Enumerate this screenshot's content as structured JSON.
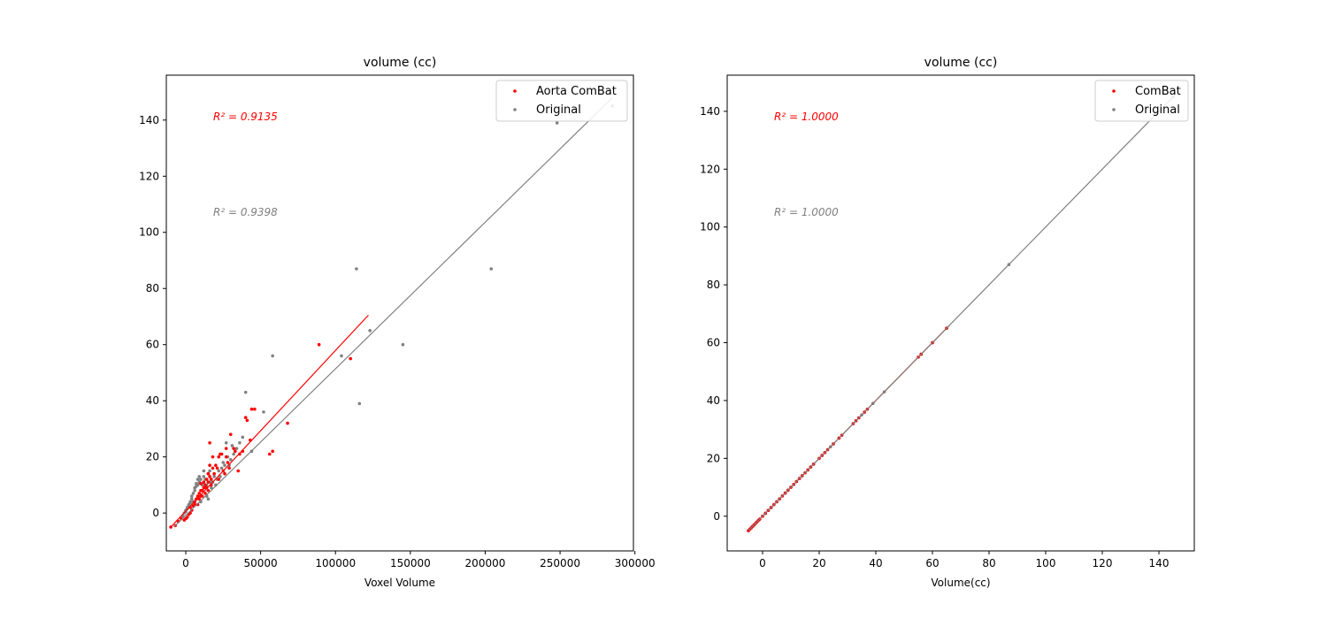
{
  "chart_data": [
    {
      "type": "scatter",
      "title": "volume (cc)",
      "xlabel": "Voxel Volume",
      "ylabel": "",
      "xlim": [
        -13000,
        299000
      ],
      "ylim": [
        -13.5,
        156
      ],
      "xticks": [
        0,
        50000,
        100000,
        150000,
        200000,
        250000,
        300000
      ],
      "yticks": [
        0,
        20,
        40,
        60,
        80,
        100,
        120,
        140
      ],
      "legend_position": "top-right",
      "annotations": [
        {
          "text": "R² = 0.9135",
          "color": "#ff0000"
        },
        {
          "text": "R² = 0.9398",
          "color": "#808080"
        }
      ],
      "series": [
        {
          "name": "Aorta ComBat",
          "color": "#ff0000",
          "points": [
            [
              -10000,
              -5
            ],
            [
              -7000,
              -4.5
            ],
            [
              -5000,
              -3
            ],
            [
              -3000,
              -2
            ],
            [
              -1000,
              -2.5
            ],
            [
              0,
              -2
            ],
            [
              1000,
              -1.5
            ],
            [
              2000,
              -0.5
            ],
            [
              3000,
              0
            ],
            [
              3000,
              2
            ],
            [
              4000,
              1
            ],
            [
              5000,
              2.5
            ],
            [
              6000,
              3
            ],
            [
              6000,
              4
            ],
            [
              7000,
              5
            ],
            [
              8000,
              3
            ],
            [
              8000,
              6
            ],
            [
              9000,
              5
            ],
            [
              9000,
              7
            ],
            [
              10000,
              6
            ],
            [
              10000,
              8
            ],
            [
              10000,
              10.5
            ],
            [
              11000,
              8
            ],
            [
              11000,
              6
            ],
            [
              12000,
              9
            ],
            [
              12000,
              11
            ],
            [
              13000,
              10
            ],
            [
              13000,
              7
            ],
            [
              14000,
              12
            ],
            [
              14000,
              9
            ],
            [
              15000,
              8
            ],
            [
              15000,
              11
            ],
            [
              15000,
              14
            ],
            [
              16000,
              13
            ],
            [
              16000,
              17
            ],
            [
              16000,
              25
            ],
            [
              17000,
              10
            ],
            [
              17000,
              12
            ],
            [
              18000,
              16
            ],
            [
              18000,
              20
            ],
            [
              19000,
              14
            ],
            [
              20000,
              17
            ],
            [
              21000,
              16
            ],
            [
              22000,
              20
            ],
            [
              22000,
              12
            ],
            [
              23000,
              21
            ],
            [
              24000,
              21
            ],
            [
              25000,
              15
            ],
            [
              26000,
              14
            ],
            [
              27000,
              23
            ],
            [
              27000,
              20
            ],
            [
              28000,
              18
            ],
            [
              29000,
              16
            ],
            [
              30000,
              28
            ],
            [
              32000,
              23
            ],
            [
              33000,
              22
            ],
            [
              35000,
              15
            ],
            [
              36000,
              21
            ],
            [
              38000,
              22
            ],
            [
              40000,
              34
            ],
            [
              41000,
              33
            ],
            [
              43000,
              26
            ],
            [
              44000,
              37
            ],
            [
              46000,
              37
            ],
            [
              56000,
              21
            ],
            [
              58000,
              22
            ],
            [
              68000,
              32
            ],
            [
              89000,
              60
            ],
            [
              110000,
              55
            ]
          ]
        },
        {
          "name": "Original",
          "color": "#808080",
          "points": [
            [
              -2000,
              -1
            ],
            [
              -1000,
              0
            ],
            [
              0,
              0.5
            ],
            [
              0,
              1
            ],
            [
              1000,
              1.5
            ],
            [
              1000,
              2
            ],
            [
              2000,
              2.5
            ],
            [
              2000,
              3
            ],
            [
              3000,
              3.5
            ],
            [
              3000,
              4
            ],
            [
              4000,
              5
            ],
            [
              4000,
              6
            ],
            [
              5000,
              4
            ],
            [
              5000,
              7
            ],
            [
              6000,
              8
            ],
            [
              6000,
              9
            ],
            [
              7000,
              9.5
            ],
            [
              7000,
              10.5
            ],
            [
              8000,
              10
            ],
            [
              8000,
              12
            ],
            [
              9000,
              13
            ],
            [
              9000,
              11
            ],
            [
              10000,
              12
            ],
            [
              10000,
              4
            ],
            [
              11000,
              8
            ],
            [
              11000,
              10
            ],
            [
              12000,
              13
            ],
            [
              12000,
              15
            ],
            [
              13000,
              12
            ],
            [
              13000,
              9
            ],
            [
              14000,
              6
            ],
            [
              14000,
              10
            ],
            [
              15000,
              5
            ],
            [
              15000,
              14
            ],
            [
              16000,
              15
            ],
            [
              16000,
              11
            ],
            [
              17000,
              9
            ],
            [
              18000,
              11
            ],
            [
              19000,
              13
            ],
            [
              20000,
              10
            ],
            [
              21000,
              12
            ],
            [
              22000,
              15
            ],
            [
              23000,
              13
            ],
            [
              24000,
              16
            ],
            [
              25000,
              18
            ],
            [
              26000,
              17
            ],
            [
              27000,
              25
            ],
            [
              28000,
              20
            ],
            [
              29000,
              17
            ],
            [
              30000,
              19
            ],
            [
              31000,
              24
            ],
            [
              32000,
              21
            ],
            [
              34000,
              23
            ],
            [
              36000,
              25
            ],
            [
              38000,
              27
            ],
            [
              40000,
              43
            ],
            [
              44000,
              22
            ],
            [
              52000,
              36
            ],
            [
              58000,
              56
            ],
            [
              104000,
              56
            ],
            [
              114000,
              87
            ],
            [
              116000,
              39
            ],
            [
              123000,
              65
            ],
            [
              145000,
              60
            ],
            [
              204000,
              87
            ],
            [
              248000,
              139
            ],
            [
              285000,
              145
            ]
          ]
        }
      ],
      "fit_lines": [
        {
          "series": "Aorta ComBat",
          "color": "#ff0000",
          "x": [
            -10000,
            122000
          ],
          "y": [
            -5,
            70.5
          ]
        },
        {
          "series": "Original",
          "color": "#808080",
          "x": [
            -8000,
            285000
          ],
          "y": [
            -5,
            148
          ]
        }
      ]
    },
    {
      "type": "scatter",
      "title": "volume (cc)",
      "xlabel": "Volume(cc)",
      "ylabel": "",
      "xlim": [
        -12.5,
        152.5
      ],
      "ylim": [
        -12,
        152.5
      ],
      "xticks": [
        0,
        20,
        40,
        60,
        80,
        100,
        120,
        140
      ],
      "yticks": [
        0,
        20,
        40,
        60,
        80,
        100,
        120,
        140
      ],
      "legend_position": "top-right",
      "annotations": [
        {
          "text": "R² = 1.0000",
          "color": "#ff0000"
        },
        {
          "text": "R² = 1.0000",
          "color": "#808080"
        }
      ],
      "series": [
        {
          "name": "ComBat",
          "color": "#ff0000",
          "points": [
            [
              -5,
              -5
            ],
            [
              -4.5,
              -4.5
            ],
            [
              -4,
              -4
            ],
            [
              -3.5,
              -3.5
            ],
            [
              -3,
              -3
            ],
            [
              -2.5,
              -2.5
            ],
            [
              -2,
              -2
            ],
            [
              -1.5,
              -1.5
            ],
            [
              -1,
              -1
            ],
            [
              0,
              0
            ],
            [
              1,
              1
            ],
            [
              2,
              2
            ],
            [
              3,
              3
            ],
            [
              4,
              4
            ],
            [
              5,
              5
            ],
            [
              6,
              6
            ],
            [
              7,
              7
            ],
            [
              8,
              8
            ],
            [
              9,
              9
            ],
            [
              10,
              10
            ],
            [
              11,
              11
            ],
            [
              12,
              12
            ],
            [
              13,
              13
            ],
            [
              14,
              14
            ],
            [
              15,
              15
            ],
            [
              16,
              16
            ],
            [
              17,
              17
            ],
            [
              18,
              18
            ],
            [
              20,
              20
            ],
            [
              21,
              21
            ],
            [
              22,
              22
            ],
            [
              23,
              23
            ],
            [
              25,
              25
            ],
            [
              27,
              27
            ],
            [
              28,
              28
            ],
            [
              32,
              32
            ],
            [
              33,
              33
            ],
            [
              34,
              34
            ],
            [
              36,
              36
            ],
            [
              37,
              37
            ],
            [
              55,
              55
            ],
            [
              56,
              56
            ],
            [
              60,
              60
            ],
            [
              65,
              65
            ]
          ]
        },
        {
          "name": "Original",
          "color": "#808080",
          "points": [
            [
              -1,
              -1
            ],
            [
              0,
              0
            ],
            [
              1,
              1
            ],
            [
              2,
              2
            ],
            [
              3,
              3
            ],
            [
              4,
              4
            ],
            [
              5,
              5
            ],
            [
              6,
              6
            ],
            [
              8,
              8
            ],
            [
              9,
              9
            ],
            [
              10,
              10
            ],
            [
              11,
              11
            ],
            [
              12,
              12
            ],
            [
              13,
              13
            ],
            [
              14,
              14
            ],
            [
              16,
              16
            ],
            [
              17,
              17
            ],
            [
              18,
              18
            ],
            [
              21,
              21
            ],
            [
              22,
              22
            ],
            [
              24,
              24
            ],
            [
              25,
              25
            ],
            [
              27,
              27
            ],
            [
              35,
              35
            ],
            [
              36,
              36
            ],
            [
              39,
              39
            ],
            [
              43,
              43
            ],
            [
              56,
              56
            ],
            [
              60,
              60
            ],
            [
              65,
              65
            ],
            [
              87,
              87
            ],
            [
              139,
              139
            ],
            [
              145,
              145
            ]
          ]
        }
      ],
      "fit_lines": [
        {
          "series": "ComBat",
          "color": "#ff0000",
          "x": [
            -5,
            66
          ],
          "y": [
            -5,
            66
          ]
        },
        {
          "series": "Original",
          "color": "#808080",
          "x": [
            -5,
            145
          ],
          "y": [
            -5,
            145
          ]
        }
      ]
    }
  ]
}
